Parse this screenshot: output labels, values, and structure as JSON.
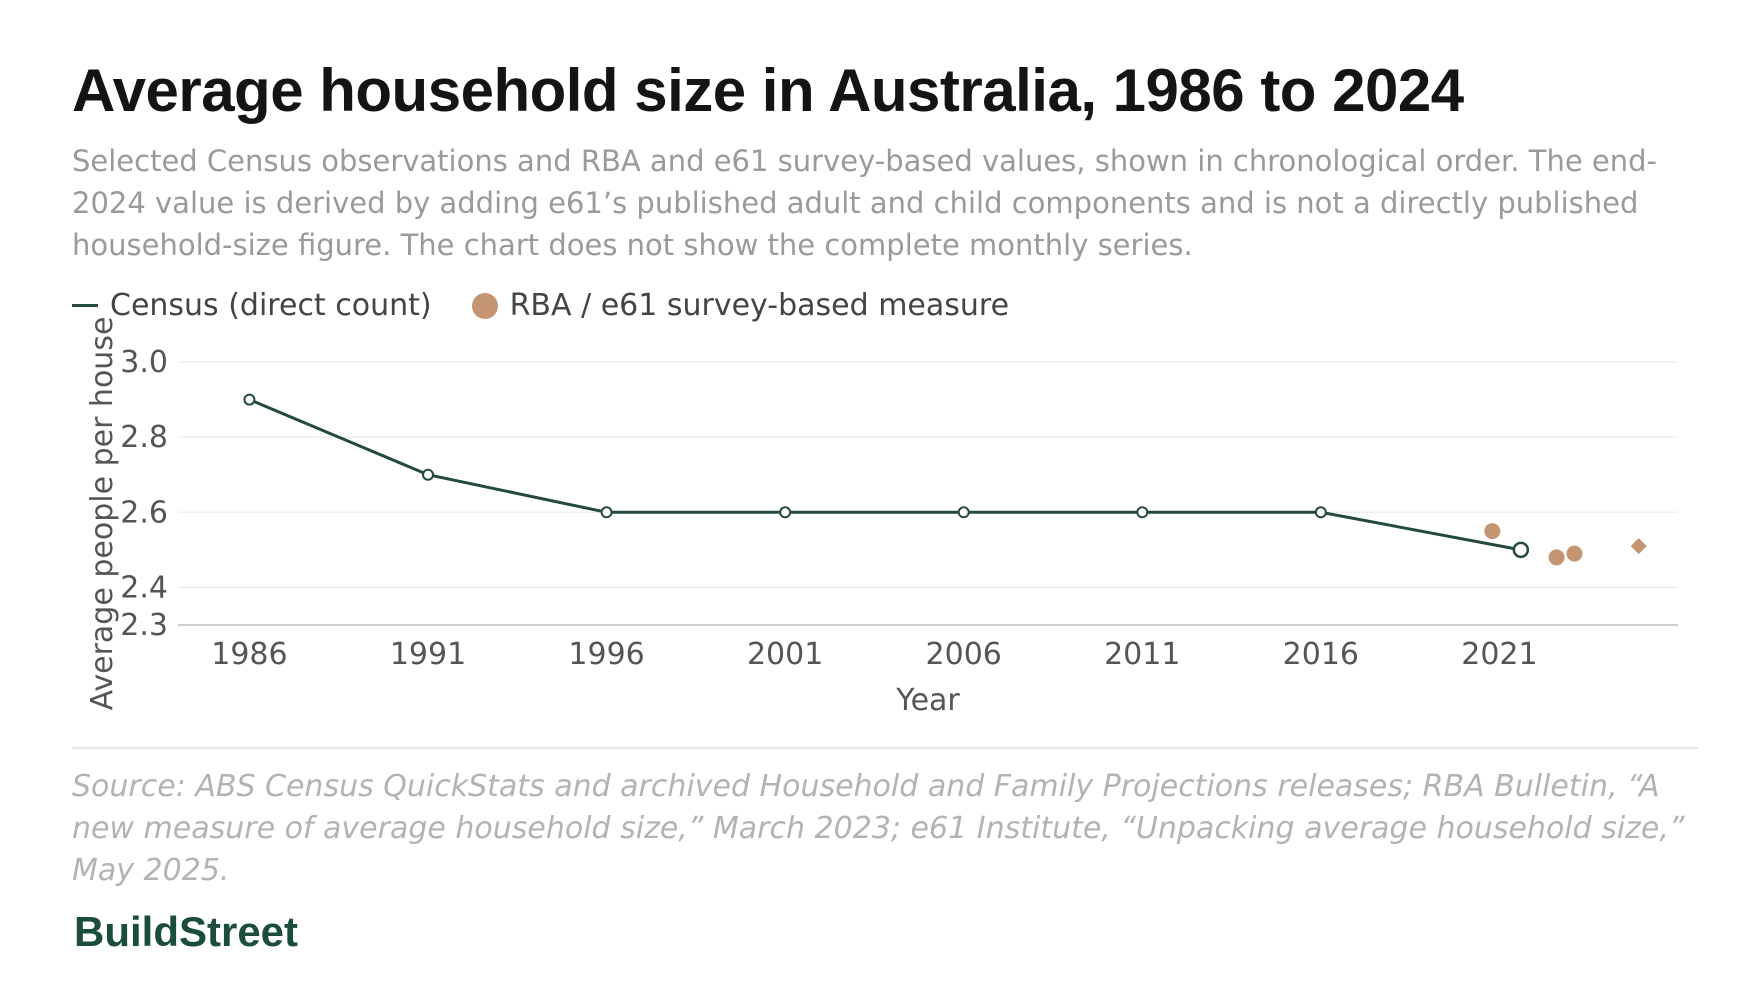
{
  "header": {
    "title": "Average household size in Australia, 1986 to 2024",
    "subtitle": "Selected Census observations and RBA and e61 survey-based values, shown in chronological order. The end-2024 value is derived by adding e61’s published adult and child components and is not a directly published household-size figure. The chart does not show the complete monthly series."
  },
  "legend": {
    "census_label": "Census (direct count)",
    "survey_label": "RBA / e61 survey-based measure"
  },
  "footer": {
    "source": "Source: ABS Census QuickStats and archived Household and Family Projections releases; RBA Bulletin, “A new measure of average household size,” March 2023; e61 Institute, “Unpacking average household size,” May 2025.",
    "brand": "BuildStreet"
  },
  "colors": {
    "census_line": "#244a3d",
    "survey_marker": "#c49570",
    "grid": "#ebebeb",
    "brand": "#1b4d3e"
  },
  "chart_data": {
    "type": "line",
    "xlabel": "Year",
    "ylabel": "Average people per house",
    "ylim": [
      2.3,
      3.0
    ],
    "yticks": [
      2.3,
      2.4,
      2.6,
      2.8,
      3.0
    ],
    "xlim": [
      1984,
      2026
    ],
    "xticks": [
      1986,
      1991,
      1996,
      2001,
      2006,
      2011,
      2016,
      2021
    ],
    "grid": true,
    "legend_position": "top-left",
    "series": [
      {
        "name": "Census (direct count)",
        "kind": "line",
        "x": [
          1986,
          1991,
          1996,
          2001,
          2006,
          2011,
          2016,
          2021.6
        ],
        "y": [
          2.9,
          2.7,
          2.6,
          2.6,
          2.6,
          2.6,
          2.6,
          2.5
        ]
      },
      {
        "name": "RBA / e61 survey-based measure",
        "kind": "scatter",
        "marker": "circle",
        "x": [
          2020.8,
          2022.6,
          2023.1
        ],
        "y": [
          2.55,
          2.48,
          2.49
        ]
      },
      {
        "name": "RBA / e61 survey-based measure",
        "kind": "scatter",
        "marker": "diamond",
        "x": [
          2024.9
        ],
        "y": [
          2.51
        ]
      }
    ]
  }
}
